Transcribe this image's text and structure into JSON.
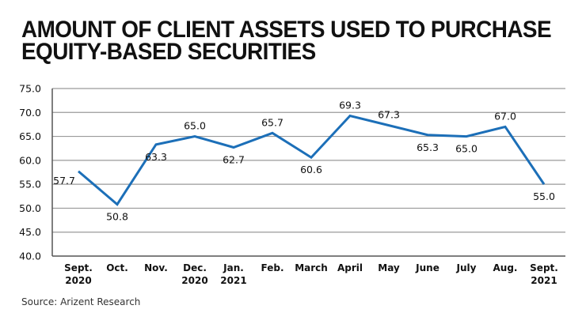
{
  "title_lines": [
    "AMOUNT OF CLIENT ASSETS USED TO PURCHASE",
    "EQUITY-BASED SECURITIES"
  ],
  "source": "Source: Arizent Research",
  "colors": {
    "line": "#1c6fb8",
    "grid": "#9a9a9a",
    "axis": "#555555",
    "text": "#111111"
  },
  "chart_data": {
    "type": "line",
    "title": "AMOUNT OF CLIENT ASSETS USED TO PURCHASE EQUITY-BASED SECURITIES",
    "xlabel": "",
    "ylabel": "",
    "categories": [
      [
        "Sept.",
        "2020"
      ],
      [
        "Oct."
      ],
      [
        "Nov."
      ],
      [
        "Dec.",
        "2020"
      ],
      [
        "Jan.",
        "2021"
      ],
      [
        "Feb."
      ],
      [
        "March"
      ],
      [
        "April"
      ],
      [
        "May"
      ],
      [
        "June"
      ],
      [
        "July"
      ],
      [
        "Aug."
      ],
      [
        "Sept.",
        "2021"
      ]
    ],
    "series": [
      {
        "name": "Client assets used to purchase equity-based securities",
        "values": [
          57.7,
          50.8,
          63.3,
          65.0,
          62.7,
          65.7,
          60.6,
          69.3,
          67.3,
          65.3,
          65.0,
          67.0,
          55.0
        ]
      }
    ],
    "data_label_position": [
      "left",
      "below",
      "below",
      "above",
      "below",
      "above",
      "below",
      "above",
      "above",
      "below",
      "below",
      "above",
      "below"
    ],
    "ylim": [
      40.0,
      75.0
    ],
    "yticks": [
      40.0,
      45.0,
      50.0,
      55.0,
      60.0,
      65.0,
      70.0,
      75.0
    ],
    "ytick_decimals": 1,
    "grid": true,
    "legend": "none"
  }
}
